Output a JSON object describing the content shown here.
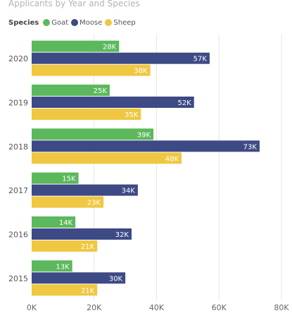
{
  "chart_data": {
    "type": "bar",
    "orientation": "horizontal",
    "title": "Applicants by Year and Species",
    "legend_title": "Species",
    "legend_position": "top-left",
    "categories": [
      "2020",
      "2019",
      "2018",
      "2017",
      "2016",
      "2015"
    ],
    "series": [
      {
        "name": "Goat",
        "color": "#5cb85c",
        "values": [
          28000,
          25000,
          39000,
          15000,
          14000,
          13000
        ],
        "labels": [
          "28K",
          "25K",
          "39K",
          "15K",
          "14K",
          "13K"
        ]
      },
      {
        "name": "Moose",
        "color": "#3d4a85",
        "values": [
          57000,
          52000,
          73000,
          34000,
          32000,
          30000
        ],
        "labels": [
          "57K",
          "52K",
          "73K",
          "34K",
          "32K",
          "30K"
        ]
      },
      {
        "name": "Sheep",
        "color": "#f0c741",
        "values": [
          38000,
          35000,
          48000,
          23000,
          21000,
          21000
        ],
        "labels": [
          "38K",
          "35K",
          "48K",
          "23K",
          "21K",
          "21K"
        ]
      }
    ],
    "xlim": [
      0,
      80000
    ],
    "x_ticks": [
      0,
      20000,
      40000,
      60000,
      80000
    ],
    "x_tick_labels": [
      "0K",
      "20K",
      "40K",
      "60K",
      "80K"
    ],
    "xlabel": "",
    "ylabel": "",
    "grid": true
  }
}
